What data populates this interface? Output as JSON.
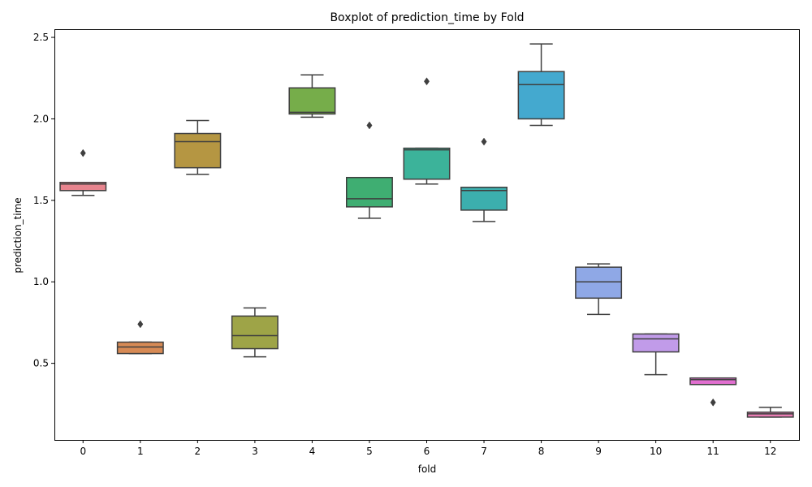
{
  "chart_data": {
    "type": "boxplot",
    "title": "Boxplot of prediction_time by Fold",
    "xlabel": "fold",
    "ylabel": "prediction_time",
    "ylim": [
      0.03,
      2.55
    ],
    "yticks": [
      0.5,
      1.0,
      1.5,
      2.0,
      2.5
    ],
    "ytick_labels": [
      "0.5",
      "1.0",
      "1.5",
      "2.0",
      "2.5"
    ],
    "grid": false,
    "categories": [
      "0",
      "1",
      "2",
      "3",
      "4",
      "5",
      "6",
      "7",
      "8",
      "9",
      "10",
      "11",
      "12"
    ],
    "boxes": [
      {
        "fold": "0",
        "whisker_low": 1.53,
        "q1": 1.56,
        "median": 1.6,
        "q3": 1.61,
        "whisker_high": 1.61,
        "outliers": [
          1.79
        ],
        "color": "#e8848e"
      },
      {
        "fold": "1",
        "whisker_low": 0.56,
        "q1": 0.56,
        "median": 0.6,
        "q3": 0.63,
        "whisker_high": 0.63,
        "outliers": [
          0.74
        ],
        "color": "#d78a55"
      },
      {
        "fold": "2",
        "whisker_low": 1.66,
        "q1": 1.7,
        "median": 1.86,
        "q3": 1.91,
        "whisker_high": 1.99,
        "outliers": [],
        "color": "#b59642"
      },
      {
        "fold": "3",
        "whisker_low": 0.54,
        "q1": 0.59,
        "median": 0.67,
        "q3": 0.79,
        "whisker_high": 0.84,
        "outliers": [],
        "color": "#9ea447"
      },
      {
        "fold": "4",
        "whisker_low": 2.01,
        "q1": 2.03,
        "median": 2.04,
        "q3": 2.19,
        "whisker_high": 2.27,
        "outliers": [],
        "color": "#76ad4a"
      },
      {
        "fold": "5",
        "whisker_low": 1.39,
        "q1": 1.46,
        "median": 1.51,
        "q3": 1.64,
        "whisker_high": 1.64,
        "outliers": [
          1.96
        ],
        "color": "#3fae72"
      },
      {
        "fold": "6",
        "whisker_low": 1.6,
        "q1": 1.63,
        "median": 1.81,
        "q3": 1.82,
        "whisker_high": 1.82,
        "outliers": [
          2.23
        ],
        "color": "#3cb39a"
      },
      {
        "fold": "7",
        "whisker_low": 1.37,
        "q1": 1.44,
        "median": 1.56,
        "q3": 1.58,
        "whisker_high": 1.58,
        "outliers": [
          1.86
        ],
        "color": "#3cafae"
      },
      {
        "fold": "8",
        "whisker_low": 1.96,
        "q1": 2.0,
        "median": 2.21,
        "q3": 2.29,
        "whisker_high": 2.46,
        "outliers": [],
        "color": "#44a9cf"
      },
      {
        "fold": "9",
        "whisker_low": 0.8,
        "q1": 0.9,
        "median": 1.0,
        "q3": 1.09,
        "whisker_high": 1.11,
        "outliers": [],
        "color": "#8fa8e6"
      },
      {
        "fold": "10",
        "whisker_low": 0.43,
        "q1": 0.57,
        "median": 0.65,
        "q3": 0.68,
        "whisker_high": 0.68,
        "outliers": [],
        "color": "#c19be9"
      },
      {
        "fold": "11",
        "whisker_low": 0.37,
        "q1": 0.37,
        "median": 0.4,
        "q3": 0.41,
        "whisker_high": 0.41,
        "outliers": [
          0.26
        ],
        "color": "#e16fd0"
      },
      {
        "fold": "12",
        "whisker_low": 0.17,
        "q1": 0.17,
        "median": 0.19,
        "q3": 0.2,
        "whisker_high": 0.23,
        "outliers": [],
        "color": "#ea7cb4"
      }
    ]
  }
}
